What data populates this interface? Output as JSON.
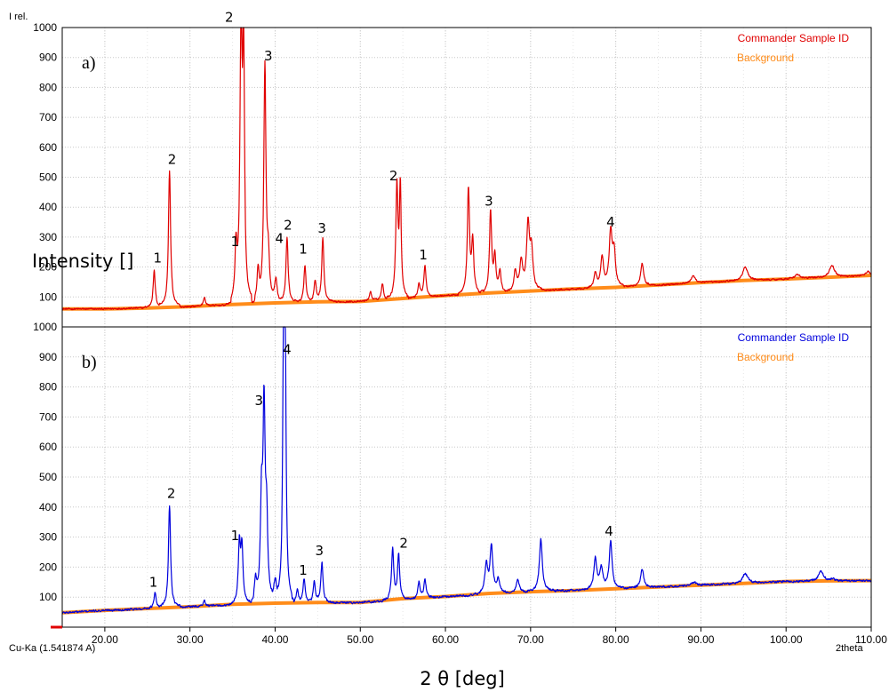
{
  "chart_data": {
    "type": "line",
    "top_label": "I rel.",
    "ylabel_overlay": "Intensity []",
    "xlabel": "2 θ [deg]",
    "xlabel_corner": "2theta",
    "radiation_label": "Cu-Ka (1.541874 A)",
    "xlim": [
      15,
      110
    ],
    "x_ticks": [
      "20.00",
      "30.00",
      "40.00",
      "50.00",
      "60.00",
      "70.00",
      "80.00",
      "90.00",
      "100.00",
      "110.00"
    ],
    "grid": true,
    "legend_position": "top-right",
    "panels": [
      {
        "label": "a)",
        "ylim": [
          0,
          1000
        ],
        "y_ticks": [
          "100",
          "200",
          "300",
          "400",
          "500",
          "600",
          "700",
          "800",
          "900",
          "1000"
        ],
        "color": "#e00000",
        "series": [
          {
            "name": "Commander Sample ID",
            "color": "#e00000",
            "kind": "pattern",
            "baseline": [
              [
                15,
                60
              ],
              [
                20,
                60
              ],
              [
                30,
                68
              ],
              [
                40,
                80
              ],
              [
                50,
                85
              ],
              [
                60,
                105
              ],
              [
                70,
                120
              ],
              [
                80,
                132
              ],
              [
                90,
                148
              ],
              [
                100,
                160
              ],
              [
                110,
                172
              ]
            ],
            "peaks": [
              [
                25.8,
                188,
                0.15
              ],
              [
                27.6,
                520,
                0.15
              ],
              [
                31.7,
                98,
                0.15
              ],
              [
                35.4,
                248,
                0.15
              ],
              [
                36.0,
                1000,
                0.15
              ],
              [
                36.3,
                905,
                0.12
              ],
              [
                38.0,
                180,
                0.15
              ],
              [
                38.8,
                870,
                0.15
              ],
              [
                39.2,
                210,
                0.15
              ],
              [
                40.1,
                165,
                0.15
              ],
              [
                41.4,
                300,
                0.15
              ],
              [
                43.5,
                205,
                0.15
              ],
              [
                44.7,
                150,
                0.15
              ],
              [
                45.6,
                295,
                0.15
              ],
              [
                51.2,
                118,
                0.15
              ],
              [
                52.6,
                145,
                0.15
              ],
              [
                54.3,
                470,
                0.15
              ],
              [
                54.7,
                460,
                0.12
              ],
              [
                56.9,
                145,
                0.15
              ],
              [
                57.6,
                205,
                0.15
              ],
              [
                62.7,
                460,
                0.15
              ],
              [
                63.2,
                280,
                0.15
              ],
              [
                65.3,
                385,
                0.15
              ],
              [
                65.8,
                230,
                0.15
              ],
              [
                66.4,
                185,
                0.15
              ],
              [
                68.2,
                185,
                0.2
              ],
              [
                68.9,
                215,
                0.2
              ],
              [
                69.7,
                335,
                0.2
              ],
              [
                70.1,
                250,
                0.2
              ],
              [
                77.6,
                180,
                0.2
              ],
              [
                78.4,
                230,
                0.2
              ],
              [
                79.4,
                310,
                0.2
              ],
              [
                79.8,
                245,
                0.2
              ],
              [
                83.1,
                215,
                0.2
              ],
              [
                89.1,
                170,
                0.3
              ],
              [
                95.2,
                200,
                0.35
              ],
              [
                101.3,
                175,
                0.35
              ],
              [
                105.4,
                205,
                0.35
              ],
              [
                109.6,
                185,
                0.3
              ]
            ],
            "noise": 4
          },
          {
            "name": "Background",
            "color": "#ff8c1a",
            "kind": "background",
            "points": [
              [
                15,
                60
              ],
              [
                20,
                60
              ],
              [
                25,
                63
              ],
              [
                30,
                68
              ],
              [
                35,
                75
              ],
              [
                40,
                80
              ],
              [
                45,
                84
              ],
              [
                50,
                85
              ],
              [
                55,
                95
              ],
              [
                60,
                105
              ],
              [
                65,
                113
              ],
              [
                70,
                120
              ],
              [
                75,
                127
              ],
              [
                80,
                132
              ],
              [
                85,
                140
              ],
              [
                90,
                148
              ],
              [
                95,
                155
              ],
              [
                100,
                160
              ],
              [
                105,
                166
              ],
              [
                110,
                172
              ]
            ]
          }
        ],
        "annotations": [
          {
            "text": "1",
            "x": 26.2,
            "y": 215
          },
          {
            "text": "2",
            "x": 27.9,
            "y": 545
          },
          {
            "text": "1",
            "x": 35.3,
            "y": 270
          },
          {
            "text": "2",
            "x": 34.6,
            "y": 1020
          },
          {
            "text": "3",
            "x": 39.2,
            "y": 890
          },
          {
            "text": "4",
            "x": 40.5,
            "y": 280
          },
          {
            "text": "2",
            "x": 41.5,
            "y": 325
          },
          {
            "text": "1",
            "x": 43.3,
            "y": 245
          },
          {
            "text": "3",
            "x": 45.5,
            "y": 315
          },
          {
            "text": "2",
            "x": 53.9,
            "y": 490
          },
          {
            "text": "1",
            "x": 57.4,
            "y": 225
          },
          {
            "text": "3",
            "x": 65.1,
            "y": 405
          },
          {
            "text": "4",
            "x": 79.4,
            "y": 335
          }
        ]
      },
      {
        "label": "b)",
        "ylim": [
          0,
          1000
        ],
        "y_ticks": [
          "100",
          "200",
          "300",
          "400",
          "500",
          "600",
          "700",
          "800",
          "900",
          "1000"
        ],
        "color": "#0000dd",
        "series": [
          {
            "name": "Commander Sample ID",
            "color": "#0000dd",
            "kind": "pattern",
            "baseline": [
              [
                15,
                48
              ],
              [
                20,
                56
              ],
              [
                30,
                68
              ],
              [
                40,
                80
              ],
              [
                50,
                82
              ],
              [
                60,
                102
              ],
              [
                70,
                118
              ],
              [
                80,
                128
              ],
              [
                90,
                140
              ],
              [
                100,
                152
              ],
              [
                110,
                155
              ]
            ],
            "peaks": [
              [
                25.9,
                115,
                0.15
              ],
              [
                27.6,
                405,
                0.15
              ],
              [
                31.7,
                88,
                0.15
              ],
              [
                35.8,
                270,
                0.15
              ],
              [
                36.1,
                260,
                0.15
              ],
              [
                37.7,
                150,
                0.15
              ],
              [
                38.4,
                390,
                0.15
              ],
              [
                38.7,
                700,
                0.15
              ],
              [
                39.0,
                330,
                0.15
              ],
              [
                40.0,
                160,
                0.15
              ],
              [
                41.0,
                1000,
                0.12
              ],
              [
                41.2,
                750,
                0.12
              ],
              [
                42.6,
                125,
                0.15
              ],
              [
                43.4,
                160,
                0.15
              ],
              [
                44.6,
                150,
                0.15
              ],
              [
                45.5,
                215,
                0.15
              ],
              [
                53.8,
                260,
                0.15
              ],
              [
                54.5,
                240,
                0.15
              ],
              [
                56.9,
                150,
                0.15
              ],
              [
                57.6,
                160,
                0.15
              ],
              [
                64.8,
                205,
                0.2
              ],
              [
                65.4,
                265,
                0.2
              ],
              [
                66.2,
                155,
                0.2
              ],
              [
                68.5,
                160,
                0.2
              ],
              [
                71.2,
                295,
                0.2
              ],
              [
                77.6,
                230,
                0.2
              ],
              [
                78.3,
                195,
                0.2
              ],
              [
                79.4,
                285,
                0.2
              ],
              [
                83.1,
                195,
                0.2
              ],
              [
                89.2,
                150,
                0.3
              ],
              [
                95.2,
                180,
                0.35
              ],
              [
                104.1,
                185,
                0.35
              ],
              [
                105.4,
                160,
                0.35
              ]
            ],
            "noise": 5
          },
          {
            "name": "Background",
            "color": "#ff8c1a",
            "kind": "background",
            "points": [
              [
                15,
                48
              ],
              [
                20,
                56
              ],
              [
                25,
                62
              ],
              [
                30,
                68
              ],
              [
                35,
                76
              ],
              [
                40,
                80
              ],
              [
                45,
                82
              ],
              [
                50,
                82
              ],
              [
                55,
                95
              ],
              [
                60,
                102
              ],
              [
                65,
                112
              ],
              [
                70,
                118
              ],
              [
                75,
                122
              ],
              [
                80,
                128
              ],
              [
                85,
                134
              ],
              [
                90,
                140
              ],
              [
                95,
                146
              ],
              [
                100,
                152
              ],
              [
                105,
                154
              ],
              [
                110,
                155
              ]
            ]
          }
        ],
        "annotations": [
          {
            "text": "1",
            "x": 25.7,
            "y": 135
          },
          {
            "text": "2",
            "x": 27.8,
            "y": 430
          },
          {
            "text": "1",
            "x": 35.3,
            "y": 290
          },
          {
            "text": "3",
            "x": 38.1,
            "y": 740
          },
          {
            "text": "4",
            "x": 41.4,
            "y": 910
          },
          {
            "text": "1",
            "x": 43.3,
            "y": 175
          },
          {
            "text": "3",
            "x": 45.2,
            "y": 240
          },
          {
            "text": "2",
            "x": 55.1,
            "y": 265
          },
          {
            "text": "4",
            "x": 79.2,
            "y": 305
          }
        ]
      }
    ]
  }
}
